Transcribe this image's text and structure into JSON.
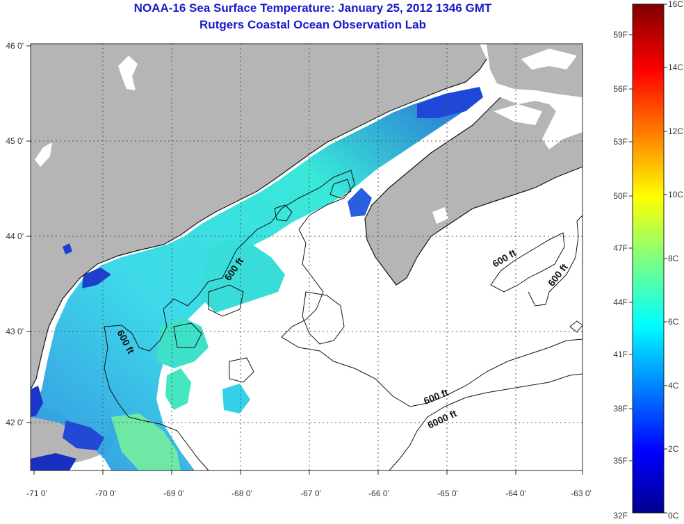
{
  "header": {
    "title": "NOAA-16 Sea Surface Temperature:  January 25, 2012 1346 GMT",
    "subtitle": "Rutgers Coastal Ocean Observation Lab"
  },
  "map": {
    "lon_ticks": [
      "-71 0'",
      "-70 0'",
      "-69 0'",
      "-68 0'",
      "-67 0'",
      "-66 0'",
      "-65 0'",
      "-64 0'",
      "-63 0'"
    ],
    "lat_ticks": [
      "46 0'",
      "45 0'",
      "44 0'",
      "43 0'",
      "42 0'"
    ],
    "contour_labels": [
      "600 ft",
      "600 ft",
      "600 ft",
      "600 ft",
      "600 ft",
      "6000 ft"
    ],
    "colors": {
      "land": "#b5b5b5",
      "no_data": "#ffffff",
      "grid": "#555555"
    }
  },
  "colorbar": {
    "celsius_labels": [
      "16C",
      "14C",
      "12C",
      "10C",
      "8C",
      "6C",
      "4C",
      "2C",
      "0C"
    ],
    "fahrenheit_labels": [
      "59F",
      "56F",
      "53F",
      "50F",
      "47F",
      "44F",
      "41F",
      "38F",
      "35F",
      "32F"
    ]
  }
}
